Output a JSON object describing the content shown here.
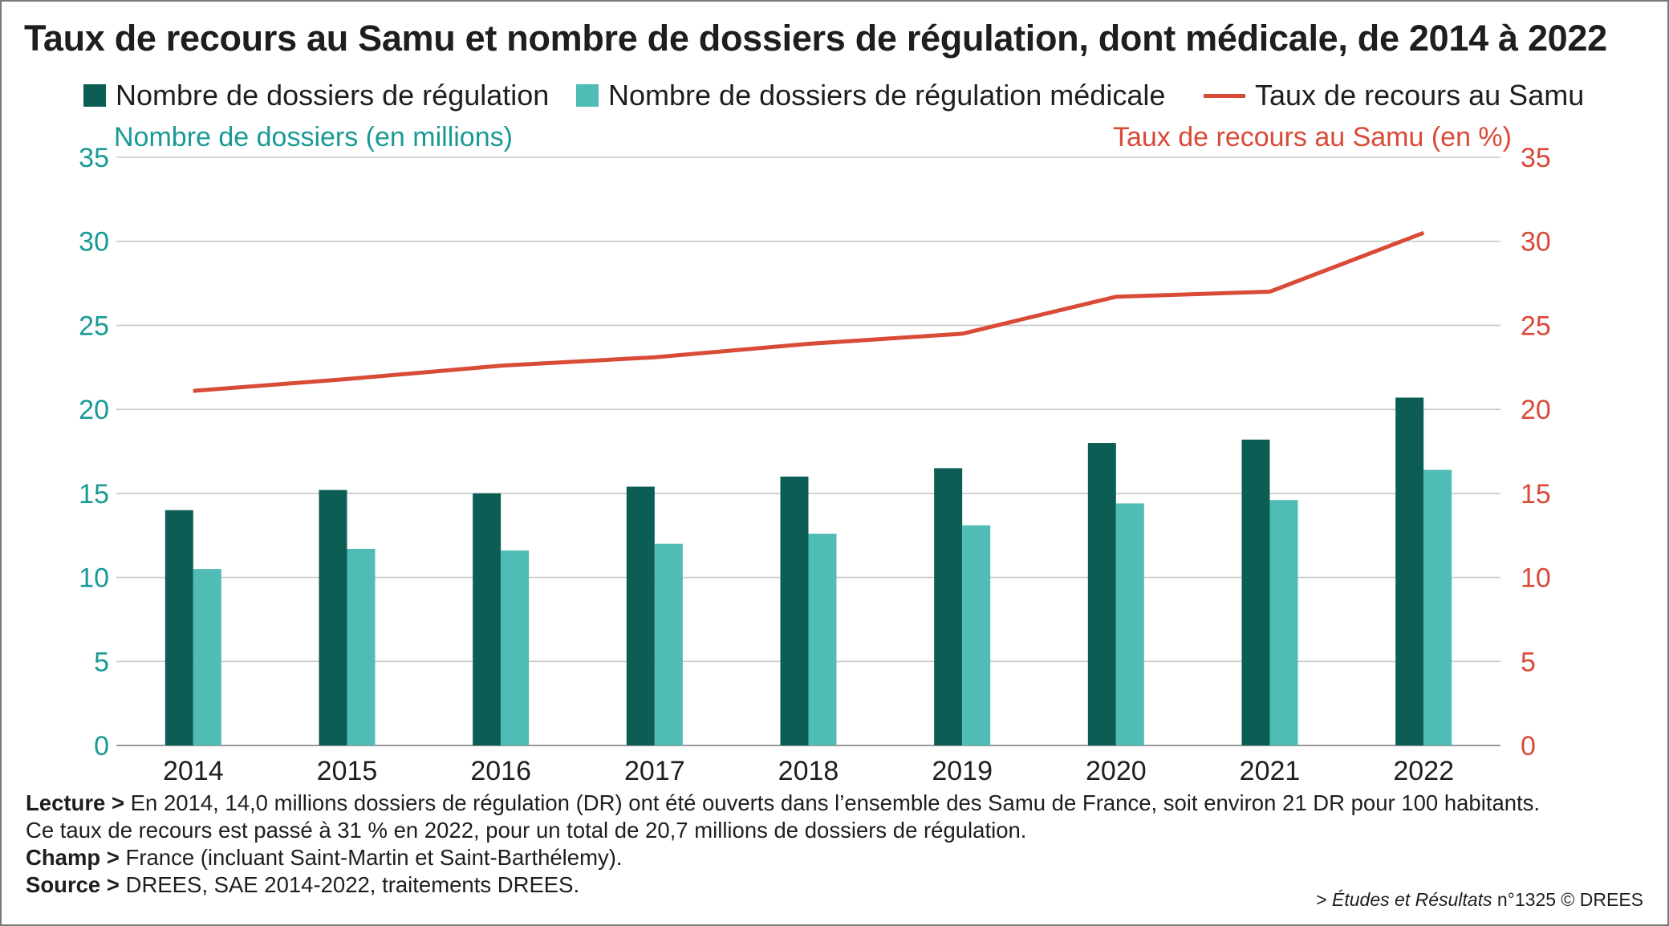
{
  "colors": {
    "dark": "#0c5e55",
    "light": "#4fbdb5",
    "rate": "#d94a37",
    "axis_left": "#1a9a96",
    "axis_right": "#d94a37",
    "grid": "#c8c8c8",
    "frame": "#7a7a7a"
  },
  "chart_data": {
    "type": "bar",
    "title": "Taux de recours au Samu et nombre de dossiers de régulation, dont médicale, de 2014 à 2022",
    "categories": [
      "2014",
      "2015",
      "2016",
      "2017",
      "2018",
      "2019",
      "2020",
      "2021",
      "2022"
    ],
    "series": [
      {
        "name": "Nombre de dossiers de régulation",
        "type": "bar",
        "axis": "left",
        "color": "#0c5e55",
        "values": [
          14.0,
          15.2,
          15.0,
          15.4,
          16.0,
          16.5,
          18.0,
          18.2,
          20.7
        ]
      },
      {
        "name": "Nombre de dossiers de régulation médicale",
        "type": "bar",
        "axis": "left",
        "color": "#4fbdb5",
        "values": [
          10.5,
          11.7,
          11.6,
          12.0,
          12.6,
          13.1,
          14.4,
          14.6,
          16.4
        ]
      },
      {
        "name": "Taux de recours au Samu",
        "type": "line",
        "axis": "right",
        "color": "#d94a37",
        "values": [
          21.1,
          21.8,
          22.6,
          23.1,
          23.9,
          24.5,
          26.7,
          27.0,
          30.5
        ]
      }
    ],
    "ylabel": "Nombre de dossiers (en millions)",
    "y2label": "Taux de recours au Samu (en %)",
    "ylim": [
      0,
      35
    ],
    "y2lim": [
      0,
      35
    ],
    "yticks": [
      "0",
      "5",
      "10",
      "15",
      "20",
      "25",
      "30",
      "35"
    ],
    "grid": true,
    "legend": "top"
  },
  "notes": {
    "lecture_label": "Lecture >",
    "lecture_text_1": " En 2014, 14,0 millions dossiers de régulation (DR) ont été ouverts dans l’ensemble des Samu de France, soit environ 21 DR pour 100 habitants.",
    "lecture_text_2": "Ce taux de recours est passé à 31 % en 2022, pour un total de 20,7 millions de dossiers de régulation.",
    "champ_label": "Champ >",
    "champ_text": " France (incluant Saint-Martin et Saint-Barthélemy).",
    "source_label": "Source >",
    "source_text": " DREES, SAE 2014-2022, traitements DREES."
  },
  "credit": {
    "prefix": "> ",
    "publication": "Études et Résultats",
    "suffix": " n°1325 © DREES"
  }
}
